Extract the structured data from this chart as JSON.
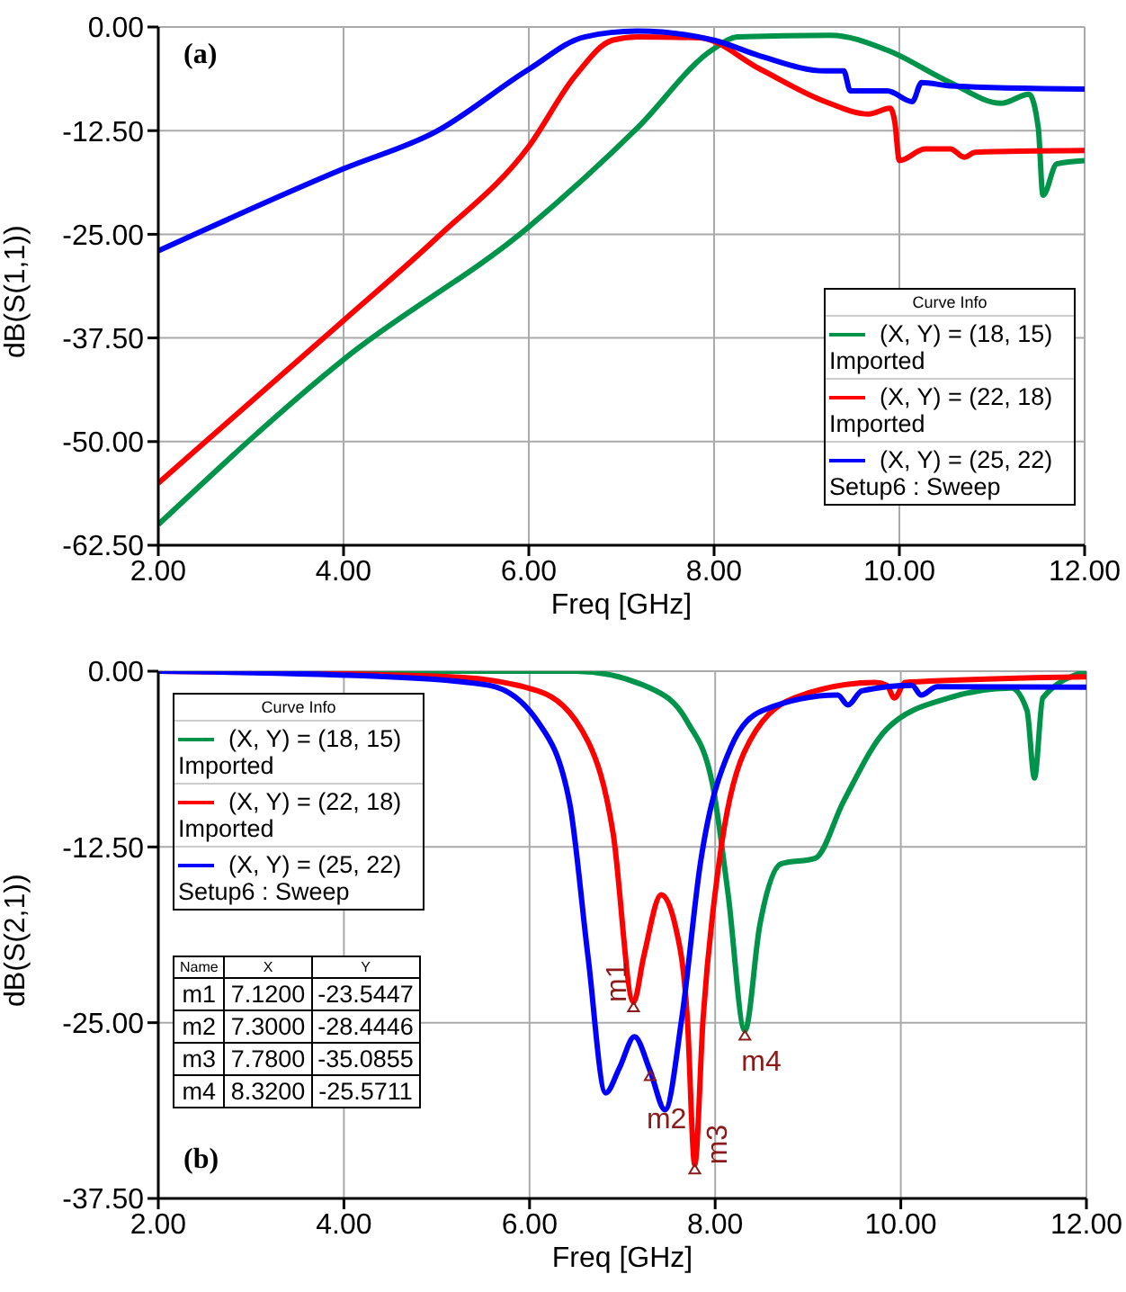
{
  "chart_data": [
    {
      "type": "line",
      "xlabel": "Freq [GHz]",
      "ylabel": "dB(S(1,1))",
      "legend_title": "Curve Info",
      "annotations": [
        "(a)"
      ],
      "xlim": [
        2,
        12
      ],
      "xticks": [
        {
          "value": 2,
          "label": "2.00"
        },
        {
          "value": 4,
          "label": "4.00"
        },
        {
          "value": 6,
          "label": "6.00"
        },
        {
          "value": 8,
          "label": "8.00"
        },
        {
          "value": 10,
          "label": "10.00"
        },
        {
          "value": 12,
          "label": "12.00"
        }
      ],
      "ylim": [
        -62.5,
        0
      ],
      "yticks": [
        {
          "value": 0,
          "label": "0.00"
        },
        {
          "value": -12.5,
          "label": "-12.50"
        },
        {
          "value": -25,
          "label": "-25.00"
        },
        {
          "value": -37.5,
          "label": "-37.50"
        },
        {
          "value": -50,
          "label": "-50.00"
        },
        {
          "value": -62.5,
          "label": "-62.50"
        }
      ],
      "grid": true,
      "legend": "bottom right",
      "marker": "none",
      "series": [
        {
          "name": "(X, Y) = (18, 15)\nImported",
          "color": "#00944a",
          "x": [
            2,
            4,
            6,
            7.17,
            8,
            8.25,
            9.26,
            9.87,
            10.55,
            11.1,
            11.4,
            11.5,
            11.55,
            11.7,
            12
          ],
          "values": [
            -60,
            -40.1,
            -24.1,
            -12.2,
            -2.6,
            -1.2,
            -1,
            -2.8,
            -6.7,
            -9.2,
            -8.1,
            -12.2,
            -20.3,
            -16.5,
            -16.1
          ]
        },
        {
          "name": "(X, Y) = (22, 18)\nImported",
          "color": "#ff0000",
          "x": [
            2,
            4,
            5,
            6,
            6.5,
            6.9,
            7.17,
            7.84,
            8.5,
            9.2,
            9.67,
            9.9,
            9.95,
            10,
            10.28,
            10.55,
            10.7,
            10.82,
            12
          ],
          "values": [
            -55,
            -35.4,
            -25.5,
            -14.4,
            -5.9,
            -1.6,
            -1.2,
            -1.3,
            -5.1,
            -9,
            -10.5,
            -9.8,
            -11.4,
            -16.1,
            -14.7,
            -14.7,
            -15.7,
            -15.1,
            -14.9
          ]
        },
        {
          "name": "(X, Y) = (25, 22)\nSetup6 : Sweep",
          "color": "#0000ff",
          "x": [
            2,
            4,
            5,
            6,
            6.6,
            7.17,
            8,
            8.5,
            9.2,
            9.4,
            9.47,
            9.87,
            10.14,
            10.24,
            10.55,
            12
          ],
          "values": [
            -27,
            -17.1,
            -12.6,
            -5.1,
            -1.2,
            -0.5,
            -1.6,
            -3.5,
            -5.3,
            -5.3,
            -7.7,
            -7.7,
            -9,
            -6.7,
            -7.1,
            -7.5
          ]
        }
      ]
    },
    {
      "type": "line",
      "xlabel": "Freq [GHz]",
      "ylabel": "dB(S(2,1))",
      "legend_title": "Curve Info",
      "annotations": [
        "(b)",
        "Name",
        "X",
        "Y",
        "7.1200",
        "-23.5447",
        "7.3000",
        "-28.4446",
        "7.7800",
        "-35.0855",
        "8.3200",
        "-25.5711",
        {
          "text": "m1",
          "x": 7.12,
          "y": -23.5447
        },
        {
          "text": "m2",
          "x": 7.3,
          "y": -28.4446
        },
        {
          "text": "m3",
          "x": 7.78,
          "y": -35.0855
        },
        {
          "text": "m4",
          "x": 8.32,
          "y": -25.5711
        }
      ],
      "xlim": [
        2,
        12
      ],
      "xticks": [
        {
          "value": 2,
          "label": "2.00"
        },
        {
          "value": 4,
          "label": "4.00"
        },
        {
          "value": 6,
          "label": "6.00"
        },
        {
          "value": 8,
          "label": "8.00"
        },
        {
          "value": 10,
          "label": "10.00"
        },
        {
          "value": 12,
          "label": "12.00"
        }
      ],
      "ylim": [
        -37.5,
        0
      ],
      "yticks": [
        {
          "value": 0,
          "label": "0.00"
        },
        {
          "value": -12.5,
          "label": "-12.50"
        },
        {
          "value": -25,
          "label": "-25.00"
        },
        {
          "value": -37.5,
          "label": "-37.50"
        }
      ],
      "grid": true,
      "legend": "top left",
      "marker": "none",
      "series": [
        {
          "name": "(X, Y) = (18, 15)\nImported",
          "color": "#00944a",
          "x": [
            2,
            6.5,
            7.3,
            7.7,
            7.97,
            8.14,
            8.32,
            8.48,
            8.71,
            9.08,
            9.38,
            9.85,
            10.52,
            11.19,
            11.36,
            11.44,
            11.53,
            12
          ],
          "values": [
            0,
            0,
            -1.2,
            -3.6,
            -8,
            -15.9,
            -25.5711,
            -18.1,
            -13.7,
            -13.3,
            -9.3,
            -4.1,
            -1.9,
            -1.2,
            -2.8,
            -7.6,
            -1.9,
            0
          ]
        },
        {
          "name": "(X, Y) = (22, 18)\nImported",
          "color": "#ff0000",
          "x": [
            2,
            5.15,
            6.09,
            6.63,
            6.9,
            7.12,
            7.23,
            7.42,
            7.57,
            7.7,
            7.78,
            7.87,
            8.04,
            8.31,
            8.85,
            9.72,
            9.85,
            9.93,
            10.05,
            12
          ],
          "values": [
            0,
            -0.4,
            -1.4,
            -5,
            -11.5,
            -23.5447,
            -20.3,
            -15.9,
            -18.1,
            -24.7,
            -35.0855,
            -24.7,
            -13.7,
            -5.8,
            -1.9,
            -0.8,
            -1,
            -1.9,
            -0.8,
            -0.4
          ]
        },
        {
          "name": "(X, Y) = (25, 22)\nSetup6 : Sweep",
          "color": "#0000ff",
          "x": [
            2,
            4.48,
            5.56,
            6.09,
            6.43,
            6.63,
            6.82,
            6.97,
            7.13,
            7.3,
            7.46,
            7.64,
            7.84,
            8.17,
            8.51,
            9.32,
            9.43,
            9.58,
            10.12,
            10.22,
            10.39,
            12
          ],
          "values": [
            0,
            -0.4,
            -1,
            -3.6,
            -9.3,
            -20.3,
            -30,
            -28.2,
            -26,
            -28.4446,
            -31.2,
            -24.7,
            -13.7,
            -5.4,
            -2.8,
            -1.7,
            -2.4,
            -1.4,
            -1,
            -1.7,
            -1.1,
            -1.14
          ]
        }
      ]
    }
  ]
}
